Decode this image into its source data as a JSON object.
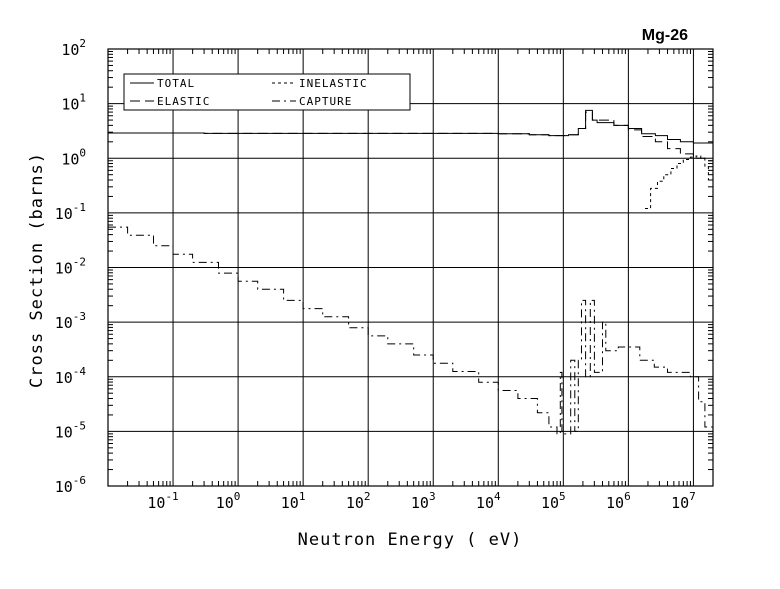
{
  "chart_data": {
    "type": "line",
    "title": "Mg-26",
    "xlabel": "Neutron Energy ( eV)",
    "ylabel": "Cross Section (barns)",
    "x_scale": "log",
    "y_scale": "log",
    "xlim": [
      0.01,
      20000000
    ],
    "ylim": [
      1e-06,
      100
    ],
    "grid": true,
    "legend_position": "top-left",
    "x_ticks": [
      {
        "value": 0.1,
        "base": "10",
        "exp": "-1"
      },
      {
        "value": 1,
        "base": "10",
        "exp": "0"
      },
      {
        "value": 10,
        "base": "10",
        "exp": "1"
      },
      {
        "value": 100,
        "base": "10",
        "exp": "2"
      },
      {
        "value": 1000,
        "base": "10",
        "exp": "3"
      },
      {
        "value": 10000,
        "base": "10",
        "exp": "4"
      },
      {
        "value": 100000,
        "base": "10",
        "exp": "5"
      },
      {
        "value": 1000000,
        "base": "10",
        "exp": "6"
      },
      {
        "value": 10000000,
        "base": "10",
        "exp": "7"
      }
    ],
    "y_ticks": [
      {
        "value": 100,
        "base": "10",
        "exp": "2"
      },
      {
        "value": 10,
        "base": "10",
        "exp": "1"
      },
      {
        "value": 1,
        "base": "10",
        "exp": "0"
      },
      {
        "value": 0.1,
        "base": "10",
        "exp": "-1"
      },
      {
        "value": 0.01,
        "base": "10",
        "exp": "-2"
      },
      {
        "value": 0.001,
        "base": "10",
        "exp": "-3"
      },
      {
        "value": 0.0001,
        "base": "10",
        "exp": "-4"
      },
      {
        "value": 1e-05,
        "base": "10",
        "exp": "-5"
      },
      {
        "value": 1e-06,
        "base": "10",
        "exp": "-6"
      }
    ],
    "series": [
      {
        "name": "TOTAL",
        "dash": "solid",
        "points": [
          [
            0.01,
            2.9
          ],
          [
            0.05,
            2.9
          ],
          [
            0.3,
            2.85
          ],
          [
            1,
            2.85
          ],
          [
            100,
            2.85
          ],
          [
            1000,
            2.85
          ],
          [
            10000,
            2.8
          ],
          [
            30000,
            2.7
          ],
          [
            60000,
            2.6
          ],
          [
            120000,
            2.7
          ],
          [
            170000,
            3.5
          ],
          [
            200000,
            3.5
          ],
          [
            220000,
            7.5
          ],
          [
            280000,
            5.0
          ],
          [
            330000,
            4.5
          ],
          [
            600000,
            4.0
          ],
          [
            1000000,
            3.5
          ],
          [
            1600000,
            2.8
          ],
          [
            2600000,
            2.6
          ],
          [
            4000000,
            2.2
          ],
          [
            6300000,
            2.0
          ],
          [
            10000000,
            1.9
          ],
          [
            20000000,
            1.85
          ]
        ]
      },
      {
        "name": "ELASTIC",
        "dash": "long-dash",
        "points": [
          [
            0.01,
            2.9
          ],
          [
            0.05,
            2.9
          ],
          [
            0.3,
            2.85
          ],
          [
            1,
            2.85
          ],
          [
            100,
            2.85
          ],
          [
            1000,
            2.85
          ],
          [
            10000,
            2.8
          ],
          [
            30000,
            2.7
          ],
          [
            60000,
            2.6
          ],
          [
            120000,
            2.7
          ],
          [
            170000,
            3.5
          ],
          [
            220000,
            7.0
          ],
          [
            280000,
            5.0
          ],
          [
            600000,
            4.0
          ],
          [
            1000000,
            3.3
          ],
          [
            1600000,
            2.5
          ],
          [
            2600000,
            2.0
          ],
          [
            4000000,
            1.5
          ],
          [
            6300000,
            1.2
          ],
          [
            10000000,
            1.0
          ],
          [
            15000000,
            0.9
          ],
          [
            20000000,
            0.85
          ]
        ]
      },
      {
        "name": "INELASTIC",
        "dash": "short-dash",
        "points": [
          [
            1800000,
            0.12
          ],
          [
            2000000,
            0.12
          ],
          [
            2200000,
            0.28
          ],
          [
            2800000,
            0.38
          ],
          [
            3500000,
            0.5
          ],
          [
            4500000,
            0.65
          ],
          [
            5600000,
            0.8
          ],
          [
            7000000,
            0.95
          ],
          [
            9000000,
            1.05
          ],
          [
            11000000,
            1.1
          ],
          [
            13000000,
            1.0
          ],
          [
            15000000,
            0.7
          ],
          [
            17000000,
            0.4
          ],
          [
            20000000,
            0.2
          ]
        ]
      },
      {
        "name": "CAPTURE",
        "dash": "dash-dot",
        "points": [
          [
            0.01,
            0.055
          ],
          [
            0.02,
            0.039
          ],
          [
            0.05,
            0.025
          ],
          [
            0.1,
            0.0175
          ],
          [
            0.2,
            0.0124
          ],
          [
            0.5,
            0.0079
          ],
          [
            1,
            0.0056
          ],
          [
            2,
            0.004
          ],
          [
            5,
            0.0025
          ],
          [
            10,
            0.00177
          ],
          [
            20,
            0.00125
          ],
          [
            50,
            0.00079
          ],
          [
            100,
            0.00056
          ],
          [
            200,
            0.0004
          ],
          [
            500,
            0.00025
          ],
          [
            1000,
            0.000177
          ],
          [
            2000,
            0.000125
          ],
          [
            5000,
            7.9e-05
          ],
          [
            10000,
            5.6e-05
          ],
          [
            20000,
            4e-05
          ],
          [
            40000,
            2.2e-05
          ],
          [
            60000,
            1.2e-05
          ],
          [
            80000,
            9e-06
          ],
          [
            90000,
            0.00012
          ],
          [
            95000,
            9e-06
          ],
          [
            110000,
            9e-06
          ],
          [
            130000,
            0.0002
          ],
          [
            150000,
            1e-05
          ],
          [
            170000,
            0.0002
          ],
          [
            190000,
            0.0025
          ],
          [
            220000,
            0.0001
          ],
          [
            260000,
            0.0025
          ],
          [
            300000,
            0.00012
          ],
          [
            400000,
            0.001
          ],
          [
            450000,
            0.0003
          ],
          [
            700000,
            0.00035
          ],
          [
            1000000,
            0.00035
          ],
          [
            1500000,
            0.0002
          ],
          [
            2500000,
            0.00015
          ],
          [
            4000000,
            0.00012
          ],
          [
            7000000,
            0.00012
          ],
          [
            9000000,
            0.0001
          ],
          [
            12000000,
            3.5e-05
          ],
          [
            15000000,
            1.2e-05
          ],
          [
            20000000,
            3e-06
          ]
        ]
      }
    ]
  }
}
